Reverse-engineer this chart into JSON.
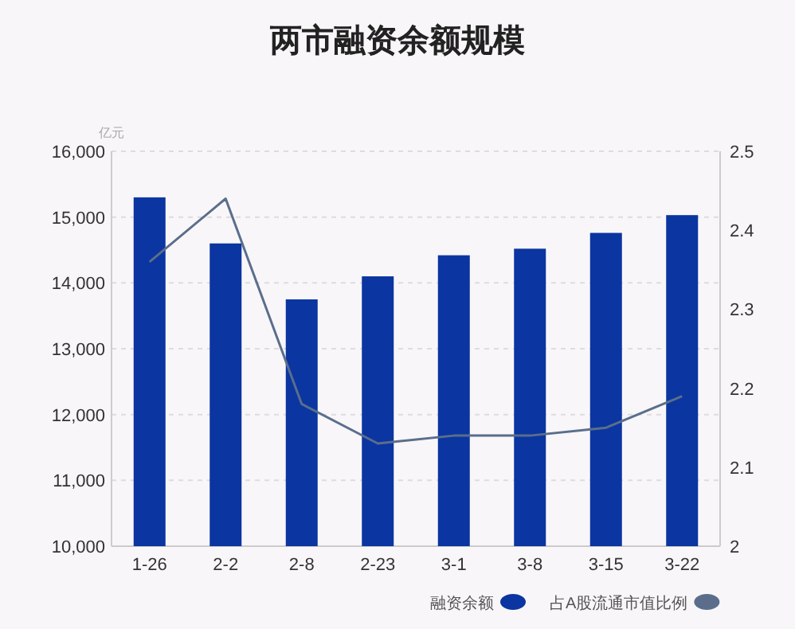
{
  "chart_data": {
    "type": "bar",
    "title": "两市融资余额规模",
    "ylabel": "亿元",
    "categories": [
      "1-26",
      "2-2",
      "2-8",
      "2-23",
      "3-1",
      "3-8",
      "3-15",
      "3-22"
    ],
    "series": [
      {
        "name": "融资余额",
        "color": "#0b35a0",
        "values": [
          15300,
          14600,
          13750,
          14100,
          14420,
          14520,
          14760,
          15030
        ]
      },
      {
        "name": "占A股流通市值比例",
        "type": "line",
        "axis": "y2",
        "color": "#5a6e8c",
        "values": [
          2.36,
          2.44,
          2.18,
          2.13,
          2.14,
          2.14,
          2.15,
          2.19
        ]
      }
    ],
    "ylim": [
      10000,
      16000
    ],
    "yticks": [
      {
        "value": 10000,
        "label": "10,000"
      },
      {
        "value": 11000,
        "label": "11,000"
      },
      {
        "value": 12000,
        "label": "12,000"
      },
      {
        "value": 13000,
        "label": "13,000"
      },
      {
        "value": 14000,
        "label": "14,000"
      },
      {
        "value": 15000,
        "label": "15,000"
      },
      {
        "value": 16000,
        "label": "16,000"
      }
    ],
    "y2lim": [
      2,
      2.5
    ],
    "y2ticks": [
      2,
      2.1,
      2.2,
      2.3,
      2.4,
      2.5
    ],
    "grid": "y",
    "legend": "bottom right",
    "line_style": "solid",
    "marker": "none"
  }
}
